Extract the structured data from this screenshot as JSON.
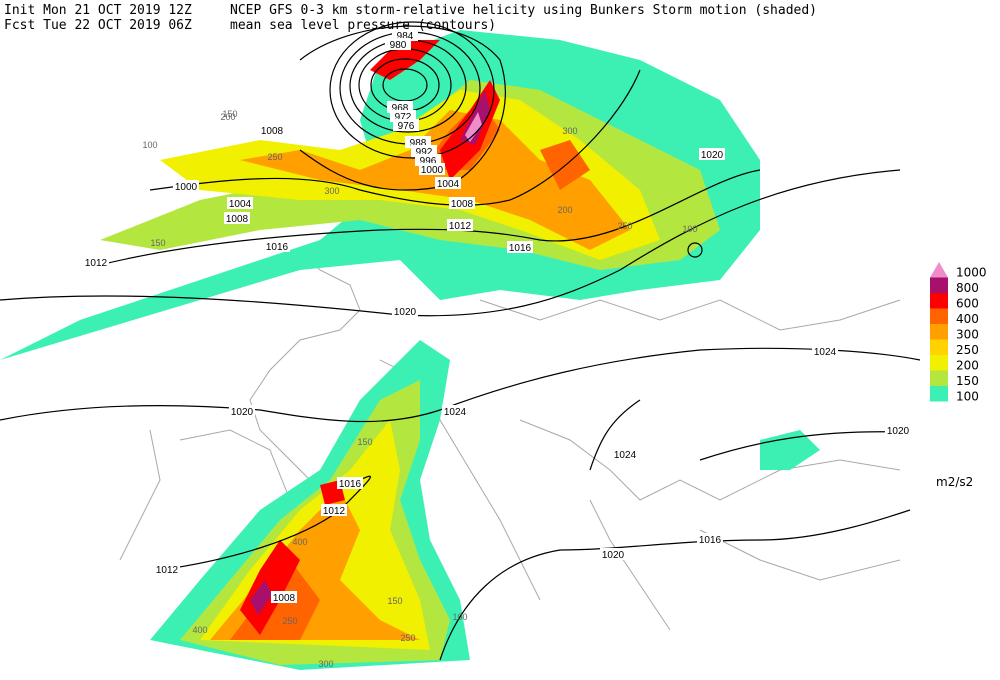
{
  "header": {
    "init": "Init  Mon 21 OCT 2019 12Z",
    "fcst": "Fcst Tue 22 OCT 2019 06Z",
    "title": "NCEP GFS 0-3 km storm-relative helicity using Bunkers Storm motion (shaded)",
    "subtitle": "mean sea level pressure (contours)"
  },
  "legend": {
    "levels": [
      {
        "value": 1000,
        "color": "#f08cc8"
      },
      {
        "value": 800,
        "color": "#a8106e"
      },
      {
        "value": 600,
        "color": "#ff0000"
      },
      {
        "value": 400,
        "color": "#ff6400"
      },
      {
        "value": 300,
        "color": "#ffa000"
      },
      {
        "value": 250,
        "color": "#ffd200"
      },
      {
        "value": 200,
        "color": "#f0f000"
      },
      {
        "value": 150,
        "color": "#b4e640"
      },
      {
        "value": 100,
        "color": "#3cf0b4"
      }
    ],
    "units": "m2/s2"
  },
  "contour_labels": [
    "984",
    "980",
    "968",
    "972",
    "976",
    "988",
    "992",
    "996",
    "1000",
    "1004",
    "1008",
    "1012",
    "1016",
    "1020",
    "1008",
    "1000",
    "1004",
    "1008",
    "1012",
    "1016",
    "1020",
    "1024",
    "1024",
    "1020",
    "1024",
    "1020",
    "1016",
    "1012",
    "1012",
    "1008",
    "1020",
    "1016"
  ],
  "shading_labels": [
    "100",
    "150",
    "200",
    "250",
    "300",
    "150",
    "250",
    "300",
    "200",
    "100",
    "150",
    "250",
    "400",
    "300",
    "250",
    "150",
    "100",
    "400"
  ]
}
